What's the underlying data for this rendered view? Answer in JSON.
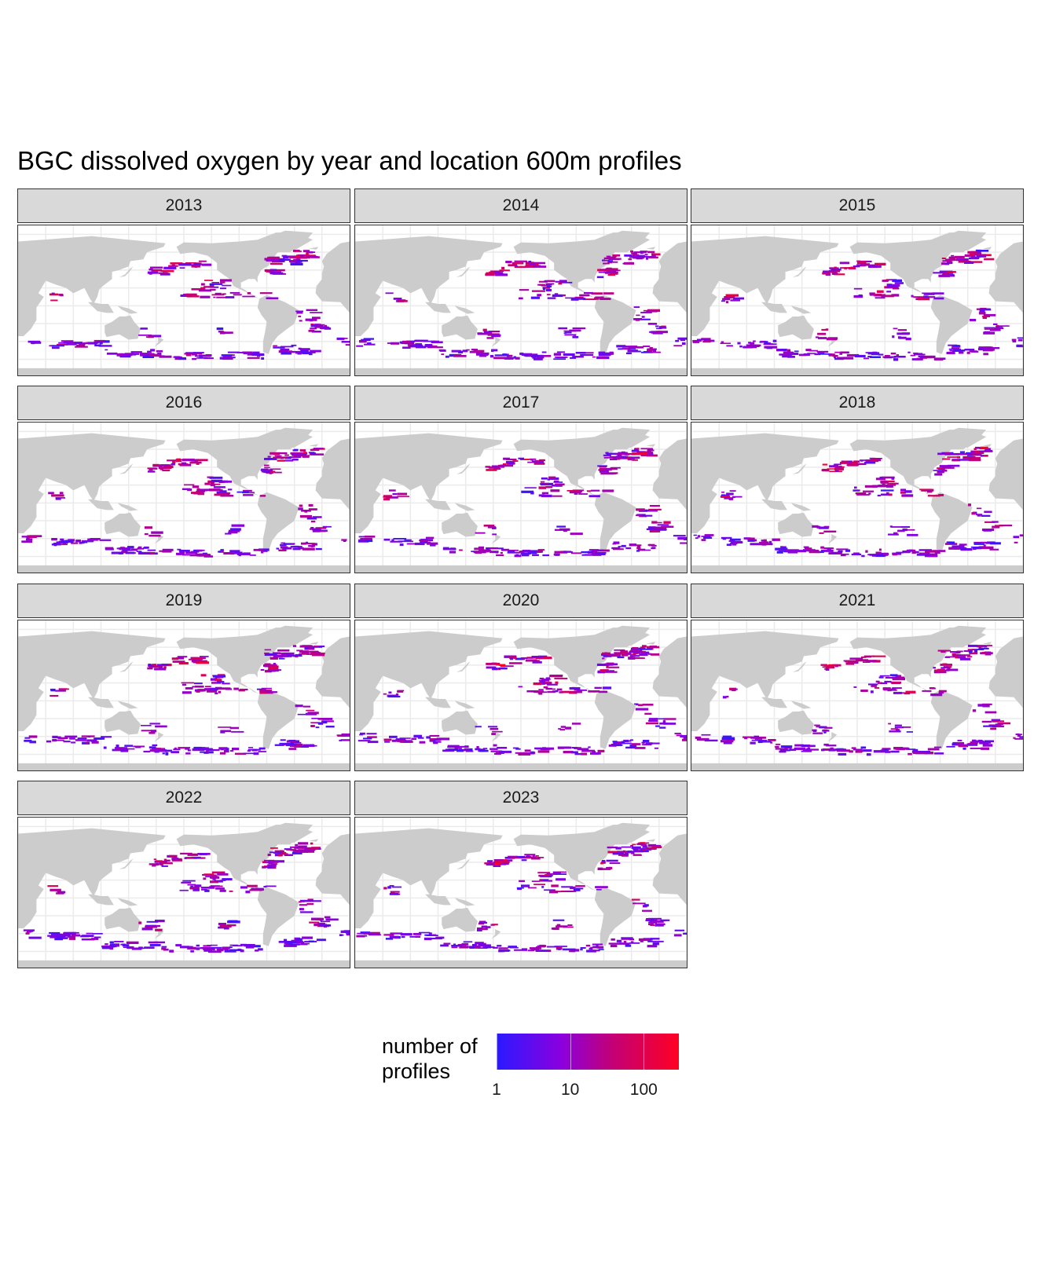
{
  "chart_data": {
    "type": "heatmap",
    "title": "BGC dissolved oxygen by year and location 600m profiles",
    "facet_variable": "year",
    "facets": [
      "2013",
      "2014",
      "2015",
      "2016",
      "2017",
      "2018",
      "2019",
      "2020",
      "2021",
      "2022",
      "2023"
    ],
    "grid": true,
    "land_color": "#cccccc",
    "legend": {
      "title": "number of\nprofiles",
      "scale": "log10",
      "ticks": [
        {
          "value": 1,
          "label": "1"
        },
        {
          "value": 10,
          "label": "10"
        },
        {
          "value": 100,
          "label": "100"
        }
      ],
      "max_value": 300,
      "low_color": "#2a1aff",
      "mid_color": "#a000b0",
      "high_color": "#ff0022",
      "placement": "bottom"
    }
  }
}
